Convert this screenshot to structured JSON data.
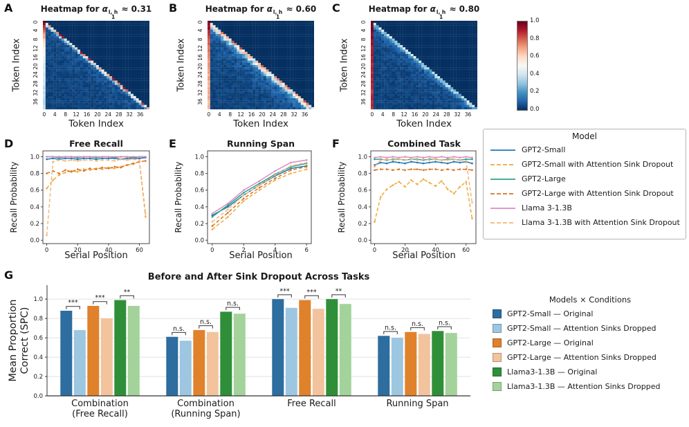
{
  "palette": {
    "gpt2_small": "#1f77b4",
    "gpt2_small_drop": "#efa83c",
    "gpt2_large": "#2ca089",
    "gpt2_large_drop": "#d9711f",
    "llama": "#da8bc3",
    "llama_drop": "#f2b67c",
    "bar_colors": [
      "#2d6d9f",
      "#9dc6e0",
      "#e0812c",
      "#f2c39c",
      "#2f8f39",
      "#a3d39a"
    ],
    "sig_color": "#333333",
    "heat_low": "#053061",
    "heat_high": "#67001f"
  },
  "colorbar": {
    "ticks": [
      "1.0",
      "0.8",
      "0.6",
      "0.4",
      "0.2",
      "0.0"
    ]
  },
  "model_legend": {
    "title": "Model",
    "items": [
      {
        "key": "gpt2_small",
        "label": "GPT2-Small",
        "dash": false
      },
      {
        "key": "gpt2_small_drop",
        "label": "GPT2-Small with Attention Sink Dropout",
        "dash": true
      },
      {
        "key": "gpt2_large",
        "label": "GPT2-Large",
        "dash": false
      },
      {
        "key": "gpt2_large_drop",
        "label": "GPT2-Large with Attention Sink Dropout",
        "dash": true
      },
      {
        "key": "llama",
        "label": "Llama 3-1.3B",
        "dash": false
      },
      {
        "key": "llama_drop",
        "label": "Llama 3-1.3B with Attention Sink Dropout",
        "dash": true
      }
    ]
  },
  "bar_legend_title": "Models × Conditions",
  "chart_data": [
    {
      "id": "A",
      "type": "heatmap",
      "title_parts": {
        "prefix": "Heatmap for ",
        "symbol": "α",
        "sub": "1",
        "sup": "l, h",
        "suffix": " ≈ 0.31"
      },
      "alpha": 0.31,
      "n_tokens": 40,
      "xlabel": "Token Index",
      "ylabel": "Token Index",
      "axis_ticks": [
        0,
        4,
        8,
        12,
        16,
        20,
        24,
        28,
        32,
        36
      ],
      "vmin": 0.0,
      "vmax": 1.0,
      "colormap": "RdBu_r",
      "pattern": "causal lower-triangular attention; strong bright diagonal band; red attention-sink column at token 0 fading after ~10 rows; upper triangle masked (0)",
      "gen": {
        "diag_mag": 0.62,
        "diag_w": 0.7,
        "rec": 0.05,
        "seed": 11
      }
    },
    {
      "id": "B",
      "type": "heatmap",
      "title_parts": {
        "prefix": "Heatmap for ",
        "symbol": "α",
        "sub": "1",
        "sup": "l, h",
        "suffix": " ≈ 0.60"
      },
      "alpha": 0.6,
      "n_tokens": 40,
      "xlabel": "Token Index",
      "ylabel": "Token Index",
      "axis_ticks": [
        0,
        4,
        8,
        12,
        16,
        20,
        24,
        28,
        32,
        36
      ],
      "vmin": 0.0,
      "vmax": 1.0,
      "colormap": "RdBu_r",
      "pattern": "causal lower-triangular attention; diffuse weaker diagonal; persistent red sink column at token 0",
      "gen": {
        "diag_mag": 0.45,
        "diag_w": 1.5,
        "rec": 0.13,
        "seed": 22
      }
    },
    {
      "id": "C",
      "type": "heatmap",
      "title_parts": {
        "prefix": "Heatmap for ",
        "symbol": "α",
        "sub": "1",
        "sup": "l, h",
        "suffix": " ≈ 0.80"
      },
      "alpha": 0.8,
      "n_tokens": 40,
      "xlabel": "Token Index",
      "ylabel": "Token Index",
      "axis_ticks": [
        0,
        4,
        8,
        12,
        16,
        20,
        24,
        28,
        32,
        36
      ],
      "vmin": 0.0,
      "vmax": 1.0,
      "colormap": "RdBu_r",
      "pattern": "causal lower-triangular attention; very faint diagonal; strong red sink column at token 0 along full length",
      "gen": {
        "diag_mag": 0.28,
        "diag_w": 1.1,
        "rec": 0.06,
        "seed": 33
      }
    },
    {
      "id": "D",
      "type": "line",
      "title": "Free Recall",
      "xlabel": "Serial Position",
      "ylabel": "Recall Probability",
      "xlim": [
        -2.5,
        66.5
      ],
      "ylim": [
        -0.04,
        1.07
      ],
      "xticks": [
        0,
        20,
        40,
        60
      ],
      "yticks": [
        "0.0",
        "0.2",
        "0.4",
        "0.6",
        "0.8",
        "1.0"
      ],
      "x": [
        0,
        4,
        8,
        12,
        16,
        20,
        24,
        28,
        32,
        36,
        40,
        44,
        48,
        52,
        56,
        60,
        64
      ],
      "series": [
        {
          "key": "gpt2_small",
          "values": [
            0.97,
            0.98,
            0.97,
            0.98,
            0.98,
            0.97,
            0.98,
            0.98,
            0.97,
            0.98,
            0.98,
            0.98,
            0.97,
            0.98,
            0.98,
            0.98,
            0.99
          ]
        },
        {
          "key": "gpt2_small_drop",
          "values": [
            0.62,
            0.72,
            0.78,
            0.81,
            0.83,
            0.82,
            0.85,
            0.84,
            0.86,
            0.85,
            0.87,
            0.86,
            0.88,
            0.9,
            0.91,
            0.94,
            0.28
          ]
        },
        {
          "key": "gpt2_large",
          "values": [
            1,
            1,
            0.99,
            1,
            1,
            0.99,
            1,
            1,
            0.99,
            1,
            1,
            0.99,
            1,
            1,
            0.99,
            1,
            1
          ]
        },
        {
          "key": "gpt2_large_drop",
          "values": [
            0.8,
            0.83,
            0.8,
            0.84,
            0.82,
            0.85,
            0.83,
            0.86,
            0.85,
            0.87,
            0.86,
            0.88,
            0.87,
            0.9,
            0.92,
            0.94,
            0.95
          ]
        },
        {
          "key": "llama",
          "values": [
            1,
            1,
            1,
            1,
            1,
            1,
            1,
            1,
            1,
            1,
            1,
            1,
            1,
            1,
            1,
            1,
            1
          ]
        },
        {
          "key": "llama_drop",
          "values": [
            0.06,
            0.94,
            0.96,
            0.95,
            0.96,
            0.95,
            0.96,
            0.96,
            0.95,
            0.96,
            0.96,
            0.95,
            0.97,
            0.96,
            0.97,
            0.96,
            0.32
          ]
        }
      ]
    },
    {
      "id": "E",
      "type": "line",
      "title": "Running Span",
      "xlabel": "Serial Position",
      "ylabel": "Recall Probability",
      "xlim": [
        -0.3,
        6.3
      ],
      "ylim": [
        -0.04,
        1.07
      ],
      "xticks": [
        0,
        2,
        4,
        6
      ],
      "yticks": [
        "0.0",
        "0.2",
        "0.4",
        "0.6",
        "0.8",
        "1.0"
      ],
      "x": [
        0,
        1,
        2,
        3,
        4,
        5,
        6
      ],
      "series": [
        {
          "key": "gpt2_small",
          "values": [
            0.3,
            0.4,
            0.54,
            0.66,
            0.77,
            0.86,
            0.89
          ]
        },
        {
          "key": "gpt2_small_drop",
          "values": [
            0.13,
            0.28,
            0.47,
            0.6,
            0.72,
            0.8,
            0.85
          ]
        },
        {
          "key": "gpt2_large",
          "values": [
            0.28,
            0.42,
            0.57,
            0.68,
            0.79,
            0.88,
            0.92
          ]
        },
        {
          "key": "gpt2_large_drop",
          "values": [
            0.17,
            0.33,
            0.5,
            0.63,
            0.74,
            0.84,
            0.88
          ]
        },
        {
          "key": "llama",
          "values": [
            0.32,
            0.44,
            0.6,
            0.71,
            0.83,
            0.93,
            0.96
          ]
        },
        {
          "key": "llama_drop",
          "values": [
            0.22,
            0.37,
            0.54,
            0.66,
            0.78,
            0.89,
            0.93
          ]
        }
      ]
    },
    {
      "id": "F",
      "type": "line",
      "title": "Combined Task",
      "xlabel": "Serial Position",
      "ylabel": "Recall Probability",
      "xlim": [
        -2.5,
        66.5
      ],
      "ylim": [
        -0.04,
        1.07
      ],
      "xticks": [
        0,
        20,
        40,
        60
      ],
      "yticks": [
        "0.0",
        "0.2",
        "0.4",
        "0.6",
        "0.8",
        "1.0"
      ],
      "x": [
        0,
        4,
        8,
        12,
        16,
        20,
        24,
        28,
        32,
        36,
        40,
        44,
        48,
        52,
        56,
        60,
        64
      ],
      "series": [
        {
          "key": "gpt2_small",
          "values": [
            0.9,
            0.93,
            0.92,
            0.94,
            0.93,
            0.92,
            0.94,
            0.93,
            0.92,
            0.93,
            0.94,
            0.93,
            0.92,
            0.94,
            0.93,
            0.94,
            0.92
          ]
        },
        {
          "key": "gpt2_small_drop",
          "values": [
            0.22,
            0.52,
            0.61,
            0.66,
            0.7,
            0.64,
            0.72,
            0.67,
            0.73,
            0.69,
            0.65,
            0.71,
            0.61,
            0.56,
            0.64,
            0.7,
            0.26
          ]
        },
        {
          "key": "gpt2_large",
          "values": [
            0.97,
            0.97,
            0.96,
            0.97,
            0.97,
            0.96,
            0.97,
            0.97,
            0.96,
            0.97,
            0.97,
            0.96,
            0.97,
            0.97,
            0.96,
            0.97,
            0.97
          ]
        },
        {
          "key": "gpt2_large_drop",
          "values": [
            0.84,
            0.85,
            0.85,
            0.84,
            0.85,
            0.84,
            0.85,
            0.85,
            0.84,
            0.85,
            0.85,
            0.84,
            0.85,
            0.84,
            0.85,
            0.85,
            0.84
          ]
        },
        {
          "key": "llama",
          "values": [
            0.99,
            1,
            0.99,
            1,
            0.99,
            1,
            0.99,
            1,
            0.99,
            1,
            0.99,
            1,
            0.99,
            1,
            0.99,
            1,
            0.99
          ]
        },
        {
          "key": "llama_drop",
          "values": [
            0.88,
            0.96,
            0.97,
            0.96,
            0.97,
            0.96,
            0.97,
            0.96,
            0.97,
            0.96,
            0.97,
            0.96,
            0.96,
            0.97,
            0.96,
            0.95,
            0.45
          ]
        }
      ]
    },
    {
      "id": "G",
      "type": "bar",
      "title": "Before and After Sink Dropout Across Tasks",
      "ylabel": "Mean Proportion\nCorrect (SPC)",
      "ylim": [
        0,
        1.13
      ],
      "yticks": [
        "0.0",
        "0.2",
        "0.4",
        "0.6",
        "0.8",
        "1.0"
      ],
      "categories": [
        "Combination (Free Recall)",
        "Combination (Running Span)",
        "Free Recall",
        "Running Span"
      ],
      "categories_lines": [
        [
          "Combination",
          "(Free Recall)"
        ],
        [
          "Combination",
          "(Running Span)"
        ],
        [
          "Free Recall"
        ],
        [
          "Running Span"
        ]
      ],
      "series": [
        {
          "name": "GPT2-Small — Original",
          "values": [
            0.88,
            0.61,
            1.0,
            0.62
          ]
        },
        {
          "name": "GPT2-Small — Attention Sinks Dropped",
          "values": [
            0.68,
            0.57,
            0.91,
            0.6
          ]
        },
        {
          "name": "GPT2-Large — Original",
          "values": [
            0.93,
            0.68,
            0.99,
            0.66
          ]
        },
        {
          "name": "GPT2-Large — Attention Sinks Dropped",
          "values": [
            0.8,
            0.66,
            0.9,
            0.64
          ]
        },
        {
          "name": "Llama3-1.3B — Original",
          "values": [
            0.99,
            0.87,
            1.0,
            0.67
          ]
        },
        {
          "name": "Llama3-1.3B — Attention Sinks Dropped",
          "values": [
            0.93,
            0.85,
            0.95,
            0.65
          ]
        }
      ],
      "sig_pairs_note": "brackets drawn over bar pairs (1,2),(3,4),(5,6) within each category",
      "sig": [
        [
          "***",
          "***",
          "**"
        ],
        [
          "n.s.",
          "n.s.",
          "n.s."
        ],
        [
          "***",
          "***",
          "**"
        ],
        [
          "n.s.",
          "n.s.",
          "n.s."
        ]
      ]
    }
  ]
}
